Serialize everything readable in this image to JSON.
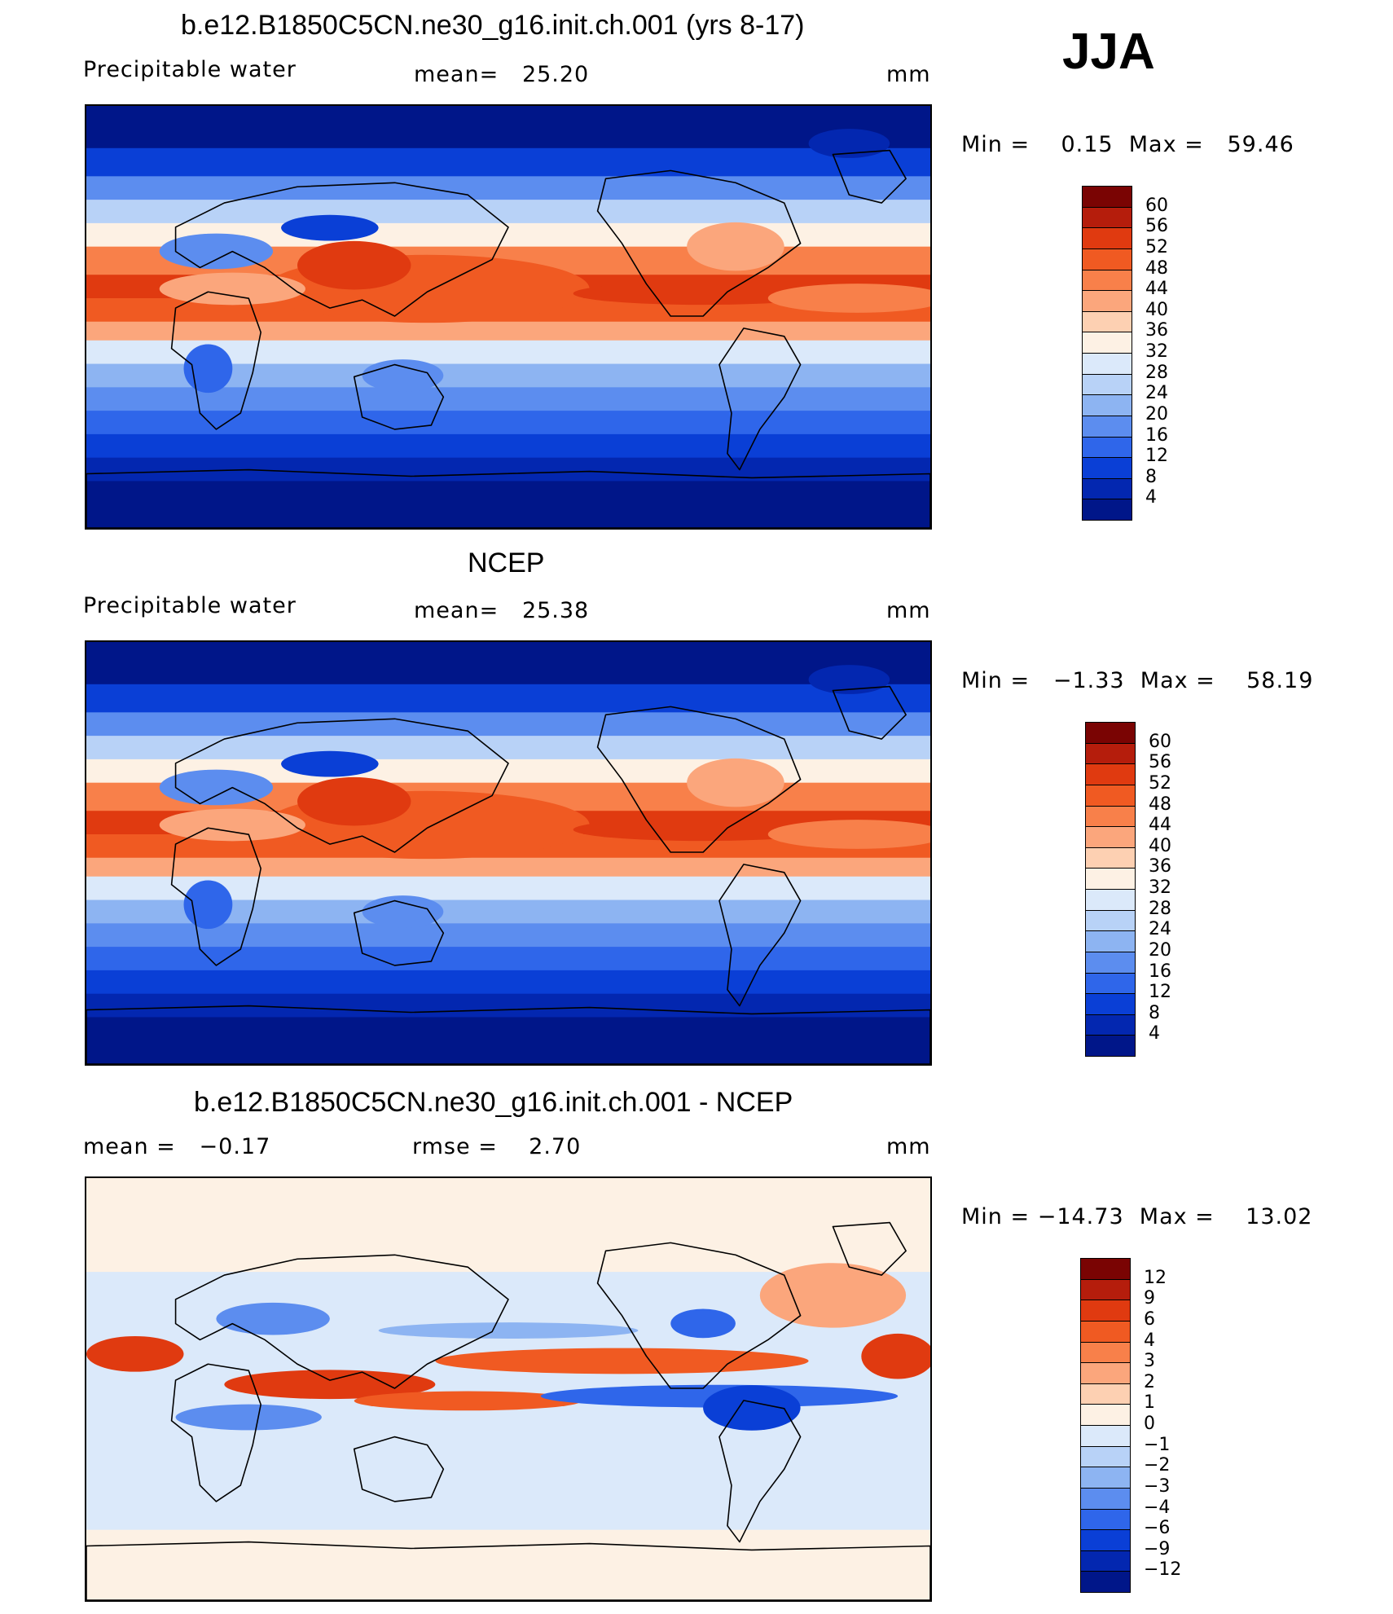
{
  "panels": [
    {
      "id": "model",
      "title": "b.e12.B1850C5CN.ne30_g16.init.ch.001 (yrs 8-17)",
      "left_label": "Precipitable water",
      "center_label": "mean=   25.20",
      "units": "mm",
      "minmax": "Min =    0.15  Max =   59.46",
      "colorbar": {
        "labels": [
          "60",
          "56",
          "52",
          "48",
          "44",
          "40",
          "36",
          "32",
          "28",
          "24",
          "20",
          "16",
          "12",
          "8",
          "4"
        ],
        "colors": [
          "#7a0403",
          "#b51d0c",
          "#e03a10",
          "#f05a22",
          "#f8804a",
          "#fba67c",
          "#fdd0b2",
          "#fdf1e4",
          "#dbe9fa",
          "#b8d2f7",
          "#8db4f2",
          "#5c8def",
          "#2f66ea",
          "#0a3fd6",
          "#0327b0",
          "#001689"
        ]
      },
      "map_type": "field"
    },
    {
      "id": "obs",
      "title": "NCEP",
      "left_label": "Precipitable water",
      "center_label": "mean=   25.38",
      "units": "mm",
      "minmax": "Min =   −1.33  Max =    58.19",
      "colorbar": {
        "labels": [
          "60",
          "56",
          "52",
          "48",
          "44",
          "40",
          "36",
          "32",
          "28",
          "24",
          "20",
          "16",
          "12",
          "8",
          "4"
        ],
        "colors": [
          "#7a0403",
          "#b51d0c",
          "#e03a10",
          "#f05a22",
          "#f8804a",
          "#fba67c",
          "#fdd0b2",
          "#fdf1e4",
          "#dbe9fa",
          "#b8d2f7",
          "#8db4f2",
          "#5c8def",
          "#2f66ea",
          "#0a3fd6",
          "#0327b0",
          "#001689"
        ]
      },
      "map_type": "field"
    },
    {
      "id": "diff",
      "title": "b.e12.B1850C5CN.ne30_g16.init.ch.001 - NCEP",
      "left_label": "mean =   −0.17",
      "center_label": "rmse =    2.70",
      "units": "mm",
      "minmax": "Min = −14.73  Max =    13.02",
      "colorbar": {
        "labels": [
          "12",
          "9",
          "6",
          "4",
          "3",
          "2",
          "1",
          "0",
          "−1",
          "−2",
          "−3",
          "−4",
          "−6",
          "−9",
          "−12"
        ],
        "colors": [
          "#7a0403",
          "#b51d0c",
          "#e03a10",
          "#f05a22",
          "#f8804a",
          "#fba67c",
          "#fdd0b2",
          "#fdf1e4",
          "#dbe9fa",
          "#b8d2f7",
          "#8db4f2",
          "#5c8def",
          "#2f66ea",
          "#0a3fd6",
          "#0327b0",
          "#001689"
        ]
      },
      "map_type": "diff"
    }
  ],
  "season": "JJA"
}
